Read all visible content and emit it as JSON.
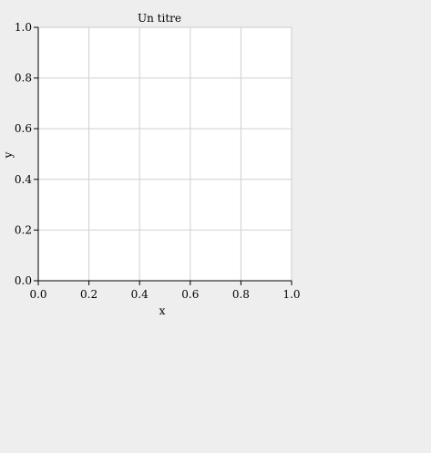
{
  "chart_data": {
    "type": "line",
    "title": "Un titre",
    "xlabel": "x",
    "ylabel": "y",
    "xlim": [
      0.0,
      1.0
    ],
    "ylim": [
      0.0,
      1.0
    ],
    "x_ticks": [
      "0.0",
      "0.2",
      "0.4",
      "0.6",
      "0.8",
      "1.0"
    ],
    "y_ticks": [
      "0.0",
      "0.2",
      "0.4",
      "0.6",
      "0.8",
      "1.0"
    ],
    "grid": true,
    "series": []
  },
  "colors": {
    "background": "#eeeeee",
    "plot_background": "#ffffff",
    "grid": "#d0d0d0",
    "axis": "#000000",
    "frame": "#cccccc"
  }
}
